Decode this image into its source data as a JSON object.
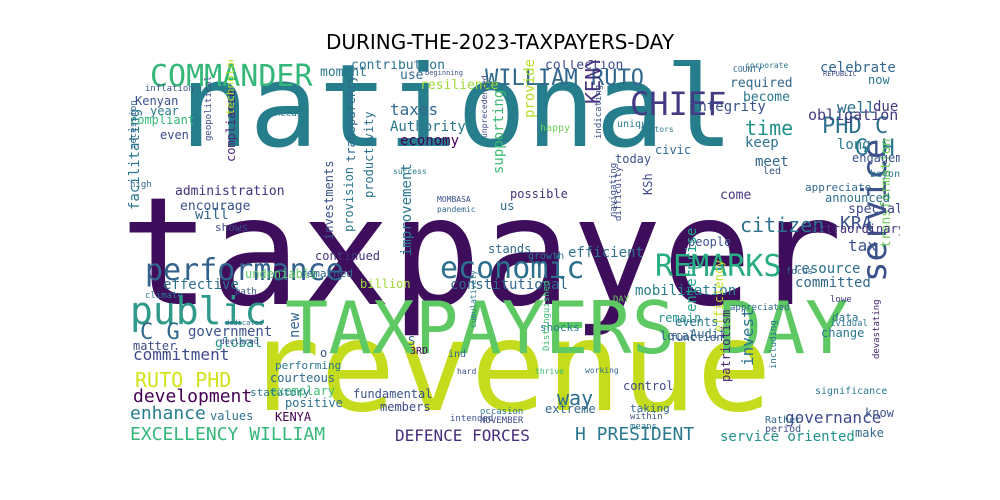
{
  "title": "DURING-THE-2023-TAXPAYERS-DAY",
  "words": [
    {
      "text": "taxpayer",
      "color": "#3e0d5c"
    },
    {
      "text": "national",
      "color": "#267d8c"
    },
    {
      "text": "revenue",
      "color": "#c5dc1d"
    },
    {
      "text": "TAXPAYERS DAY",
      "color": "#5ec962"
    },
    {
      "text": "public",
      "color": "#2f9a8a"
    },
    {
      "text": "performance",
      "color": "#33638d"
    },
    {
      "text": "economic",
      "color": "#2d708e"
    },
    {
      "text": "REMARKS",
      "color": "#27ad81"
    },
    {
      "text": "CHIEF",
      "color": "#443983"
    },
    {
      "text": "COMMANDER",
      "color": "#35b779"
    },
    {
      "text": "WILLIAM RUTO",
      "color": "#31688e"
    },
    {
      "text": "service",
      "color": "#3b528b"
    },
    {
      "text": "PHD C",
      "color": "#2c728e"
    },
    {
      "text": "G H",
      "color": "#2a788e"
    },
    {
      "text": "KENYA DEFENCE",
      "color": "#46327e"
    },
    {
      "text": "C G",
      "color": "#31688e"
    },
    {
      "text": "commitment",
      "color": "#3e4a89"
    },
    {
      "text": "RUTO PHD",
      "color": "#d2e21b"
    },
    {
      "text": "development",
      "color": "#440154"
    },
    {
      "text": "enhance",
      "color": "#277f8e"
    },
    {
      "text": "EXCELLENCY WILLIAM",
      "color": "#35b779"
    },
    {
      "text": "DEFENCE FORCES",
      "color": "#472d7b"
    },
    {
      "text": "H PRESIDENT",
      "color": "#2a788e"
    },
    {
      "text": "service oriented",
      "color": "#21918c"
    },
    {
      "text": "government",
      "color": "#3b528b"
    },
    {
      "text": "KRA",
      "color": "#3a548c"
    },
    {
      "text": "citizen",
      "color": "#2c728e"
    },
    {
      "text": "time",
      "color": "#21918c"
    },
    {
      "text": "obligation",
      "color": "#443983"
    },
    {
      "text": "way",
      "color": "#2d708e"
    },
    {
      "text": "taxes",
      "color": "#31688e"
    },
    {
      "text": "Authority",
      "color": "#2a788e"
    },
    {
      "text": "economy",
      "color": "#440154"
    },
    {
      "text": "administration",
      "color": "#46327e"
    },
    {
      "text": "encourage",
      "color": "#3b528b"
    },
    {
      "text": "will",
      "color": "#31688e"
    },
    {
      "text": "shows",
      "color": "#3e4a89"
    },
    {
      "text": "effective",
      "color": "#2d708e"
    },
    {
      "text": "improvement",
      "color": "#2a788e"
    },
    {
      "text": "supporting",
      "color": "#3fbc73"
    },
    {
      "text": "provide",
      "color": "#b5de2b"
    },
    {
      "text": "continued",
      "color": "#46327e"
    },
    {
      "text": "constitutional",
      "color": "#31688e"
    },
    {
      "text": "mobilization",
      "color": "#277f8e"
    },
    {
      "text": "enterprise",
      "color": "#20a486"
    },
    {
      "text": "efficiency",
      "color": "#c2df23"
    },
    {
      "text": "invest",
      "color": "#2c728e"
    },
    {
      "text": "tax",
      "color": "#3b528b"
    },
    {
      "text": "resource",
      "color": "#2d708e"
    },
    {
      "text": "committed",
      "color": "#31688e"
    },
    {
      "text": "governance",
      "color": "#3e4a89"
    },
    {
      "text": "transformation",
      "color": "#6ece58"
    },
    {
      "text": "facilitating",
      "color": "#2a788e"
    },
    {
      "text": "celebrate",
      "color": "#31688e"
    },
    {
      "text": "well",
      "color": "#2c728e"
    },
    {
      "text": "due",
      "color": "#443983"
    },
    {
      "text": "long",
      "color": "#2a788e"
    },
    {
      "text": "engagement",
      "color": "#3b528b"
    },
    {
      "text": "announced",
      "color": "#2d708e"
    },
    {
      "text": "special",
      "color": "#3e4a89"
    },
    {
      "text": "extraordinary",
      "color": "#46327e"
    },
    {
      "text": "meet",
      "color": "#31688e"
    },
    {
      "text": "keep",
      "color": "#2c728e"
    },
    {
      "text": "integrity",
      "color": "#3b528b"
    },
    {
      "text": "become",
      "color": "#2a788e"
    },
    {
      "text": "required",
      "color": "#31688e"
    },
    {
      "text": "come",
      "color": "#443983"
    },
    {
      "text": "people",
      "color": "#3b528b"
    },
    {
      "text": "efficient",
      "color": "#2d708e"
    },
    {
      "text": "possible",
      "color": "#46327e"
    },
    {
      "text": "stands",
      "color": "#31688e"
    },
    {
      "text": "collection",
      "color": "#3e4a89"
    },
    {
      "text": "resilience",
      "color": "#a0da39"
    },
    {
      "text": "contribution",
      "color": "#2c728e"
    },
    {
      "text": "moment",
      "color": "#2a788e"
    },
    {
      "text": "use",
      "color": "#31688e"
    },
    {
      "text": "Kenyan",
      "color": "#3b528b"
    },
    {
      "text": "year",
      "color": "#2a788e"
    },
    {
      "text": "compliant",
      "color": "#35b779"
    },
    {
      "text": "even",
      "color": "#3e4a89"
    },
    {
      "text": "compliance",
      "color": "#482475"
    },
    {
      "text": "transparency",
      "color": "#31688e"
    },
    {
      "text": "productivity",
      "color": "#2c728e"
    },
    {
      "text": "investments",
      "color": "#3b528b"
    },
    {
      "text": "provision",
      "color": "#2a788e"
    },
    {
      "text": "undeniable",
      "color": "#5ec962"
    },
    {
      "text": "remained",
      "color": "#31688e"
    },
    {
      "text": "billion",
      "color": "#a0da39"
    },
    {
      "text": "global",
      "color": "#21918c"
    },
    {
      "text": "matter",
      "color": "#3e4a89"
    },
    {
      "text": "new",
      "color": "#31688e"
    },
    {
      "text": "performing",
      "color": "#2a788e"
    },
    {
      "text": "courteous",
      "color": "#31688e"
    },
    {
      "text": "exemplary",
      "color": "#3fbc73"
    },
    {
      "text": "positive",
      "color": "#2d708e"
    },
    {
      "text": "fundamental",
      "color": "#3b528b"
    },
    {
      "text": "members",
      "color": "#3e4a89"
    },
    {
      "text": "KENYA",
      "color": "#440154"
    },
    {
      "text": "values",
      "color": "#2c728e"
    },
    {
      "text": "local",
      "color": "#31688e"
    },
    {
      "text": "function",
      "color": "#3b528b"
    },
    {
      "text": "remain",
      "color": "#21918c"
    },
    {
      "text": "events",
      "color": "#2a788e"
    },
    {
      "text": "Audit",
      "color": "#31688e"
    },
    {
      "text": "control",
      "color": "#3e4a89"
    },
    {
      "text": "data",
      "color": "#2c728e"
    },
    {
      "text": "change",
      "color": "#2a788e"
    },
    {
      "text": "know",
      "color": "#3b528b"
    },
    {
      "text": "make",
      "color": "#31688e"
    },
    {
      "text": "significance",
      "color": "#2a788e"
    },
    {
      "text": "lowe",
      "color": "#443983"
    },
    {
      "text": "ividual",
      "color": "#2a788e"
    },
    {
      "text": "Rather",
      "color": "#31688e"
    },
    {
      "text": "period",
      "color": "#3b528b"
    },
    {
      "text": "patriotism",
      "color": "#482475"
    },
    {
      "text": "including",
      "color": "#2a788e"
    },
    {
      "text": "appreciated",
      "color": "#31688e"
    },
    {
      "text": "taking",
      "color": "#31688e"
    },
    {
      "text": "within",
      "color": "#3b528b"
    },
    {
      "text": "means",
      "color": "#2a788e"
    },
    {
      "text": "occasion",
      "color": "#2c728e"
    },
    {
      "text": "NOVEMBER",
      "color": "#3e4a89"
    },
    {
      "text": "extreme",
      "color": "#31688e"
    },
    {
      "text": "shocks",
      "color": "#2a788e"
    },
    {
      "text": "intended",
      "color": "#3b528b"
    },
    {
      "text": "KSh",
      "color": "#3e4a89"
    },
    {
      "text": "us",
      "color": "#31688e"
    },
    {
      "text": "growth",
      "color": "#2a788e"
    },
    {
      "text": "today",
      "color": "#3b528b"
    },
    {
      "text": "civic",
      "color": "#31688e"
    },
    {
      "text": "unique",
      "color": "#2a788e"
    },
    {
      "text": "happy",
      "color": "#6ece58"
    },
    {
      "text": "technology",
      "color": "#b5de2b"
    },
    {
      "text": "inflation",
      "color": "#3b528b"
    },
    {
      "text": "needs",
      "color": "#2a788e"
    },
    {
      "text": "recession",
      "color": "#31688e"
    },
    {
      "text": "geopolitical",
      "color": "#3e4a89"
    },
    {
      "text": "high",
      "color": "#31688e"
    },
    {
      "text": "climate",
      "color": "#2a788e"
    },
    {
      "text": "path",
      "color": "#3b528b"
    },
    {
      "text": "dedicated",
      "color": "#31688e"
    },
    {
      "text": "declared",
      "color": "#3e4a89"
    },
    {
      "text": "statutory",
      "color": "#2a788e"
    },
    {
      "text": "hard",
      "color": "#3b528b"
    },
    {
      "text": "working",
      "color": "#31688e"
    },
    {
      "text": "thrive",
      "color": "#35b779"
    },
    {
      "text": "factors",
      "color": "#2a788e"
    },
    {
      "text": "navigating",
      "color": "#3b528b"
    },
    {
      "text": "difficulty",
      "color": "#3e4a89"
    },
    {
      "text": "appreciate",
      "color": "#31688e"
    },
    {
      "text": "beyond",
      "color": "#2a788e"
    },
    {
      "text": "indicating",
      "color": "#3b528b"
    },
    {
      "text": "COUNTY",
      "color": "#31688e"
    },
    {
      "text": "REPUBLIC",
      "color": "#3e4a89"
    },
    {
      "text": "corporate",
      "color": "#2a788e"
    },
    {
      "text": "MOMBASA",
      "color": "#3b528b"
    },
    {
      "text": "pandemic",
      "color": "#31688e"
    },
    {
      "text": "3RD",
      "color": "#440154"
    },
    {
      "text": "ind",
      "color": "#31688e"
    },
    {
      "text": "cumulatively",
      "color": "#2a788e"
    },
    {
      "text": "Distinguished",
      "color": "#3fbc73"
    },
    {
      "text": "devastating",
      "color": "#482475"
    },
    {
      "text": "o",
      "color": "#3b528b"
    },
    {
      "text": "S",
      "color": "#31688e"
    },
    {
      "text": "now",
      "color": "#2a788e"
    },
    {
      "text": "led",
      "color": "#3b528b"
    },
    {
      "text": "DAY",
      "color": "#6ece58"
    },
    {
      "text": "focus",
      "color": "#31688e"
    },
    {
      "text": "unprecedented",
      "color": "#3e4a89"
    },
    {
      "text": "success",
      "color": "#2a788e"
    },
    {
      "text": "beginning",
      "color": "#3b528b"
    }
  ]
}
